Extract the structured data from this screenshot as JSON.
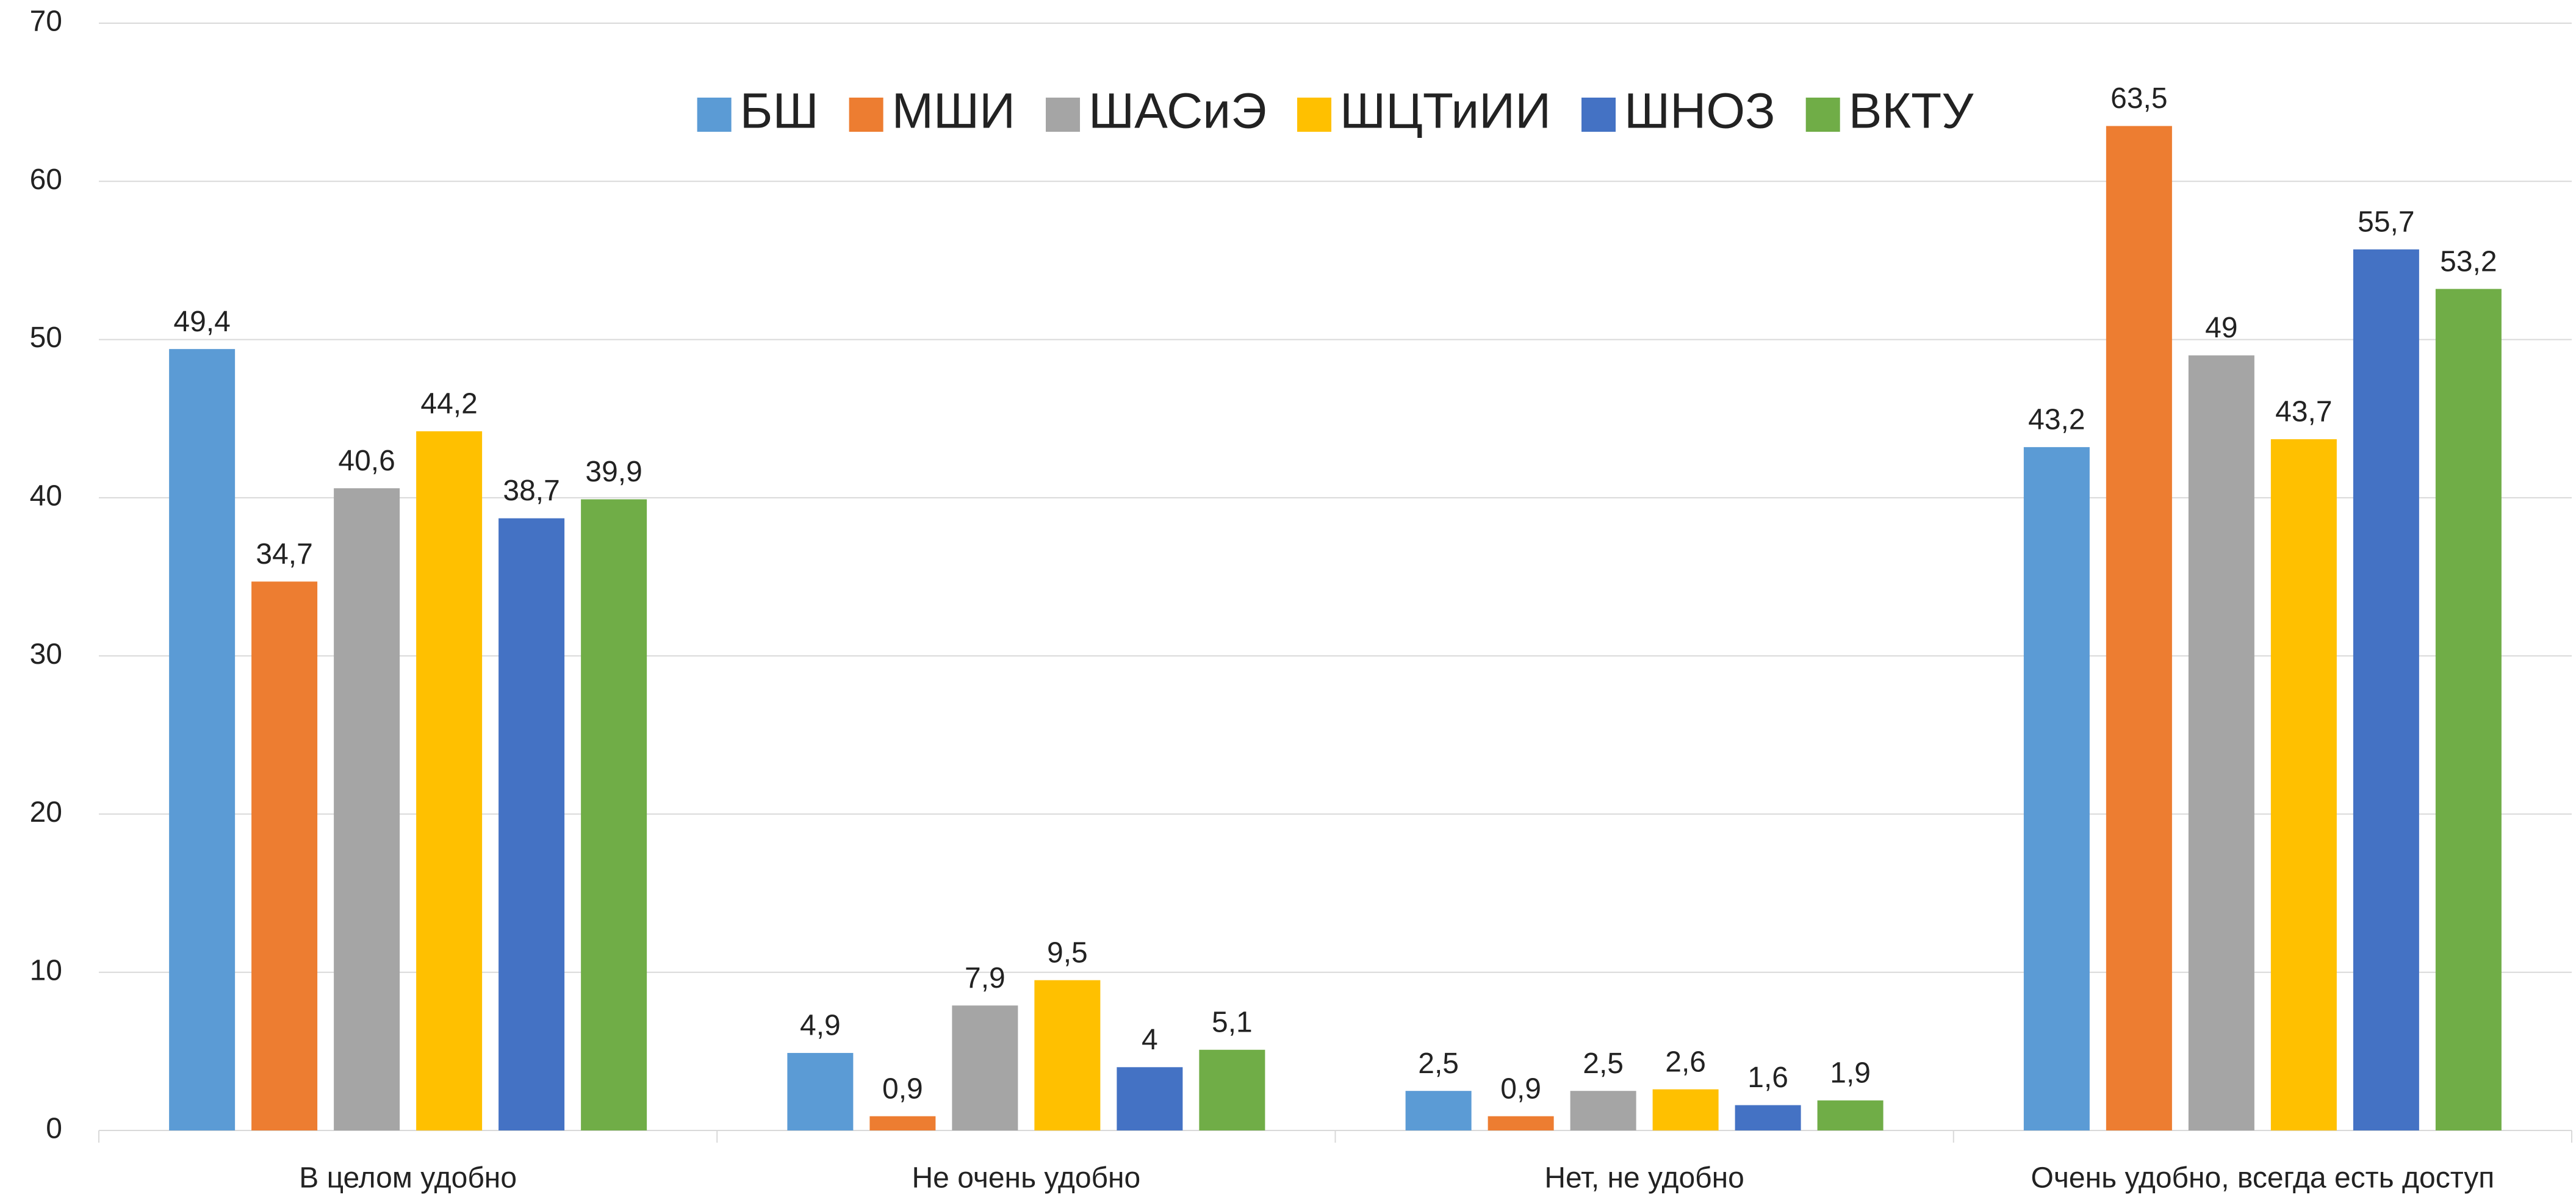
{
  "chart_data": {
    "type": "bar",
    "categories": [
      "В целом удобно",
      "Не очень удобно",
      "Нет, не удобно",
      "Очень удобно, всегда есть доступ"
    ],
    "series": [
      {
        "name": "БШ",
        "color": "#5b9bd5",
        "values": [
          49.4,
          4.9,
          2.5,
          43.2
        ],
        "value_labels": [
          "49,4",
          "4,9",
          "2,5",
          "43,2"
        ]
      },
      {
        "name": "МШИ",
        "color": "#ed7d31",
        "values": [
          34.7,
          0.9,
          0.9,
          63.5
        ],
        "value_labels": [
          "34,7",
          "0,9",
          "0,9",
          "63,5"
        ]
      },
      {
        "name": "ШАСиЭ",
        "color": "#a5a5a5",
        "values": [
          40.6,
          7.9,
          2.5,
          49
        ],
        "value_labels": [
          "40,6",
          "7,9",
          "2,5",
          "49"
        ]
      },
      {
        "name": "ШЦТиИИ",
        "color": "#ffc000",
        "values": [
          44.2,
          9.5,
          2.6,
          43.7
        ],
        "value_labels": [
          "44,2",
          "9,5",
          "2,6",
          "43,7"
        ]
      },
      {
        "name": "ШНОЗ",
        "color": "#4472c4",
        "values": [
          38.7,
          4,
          1.6,
          55.7
        ],
        "value_labels": [
          "38,7",
          "4",
          "1,6",
          "55,7"
        ]
      },
      {
        "name": "ВКТУ",
        "color": "#70ad47",
        "values": [
          39.9,
          5.1,
          1.9,
          53.2
        ],
        "value_labels": [
          "39,9",
          "5,1",
          "1,9",
          "53,2"
        ]
      }
    ],
    "ylim": [
      0,
      70
    ],
    "yticks": [
      0,
      10,
      20,
      30,
      40,
      50,
      60,
      70
    ],
    "grid": true,
    "legend": "top"
  }
}
